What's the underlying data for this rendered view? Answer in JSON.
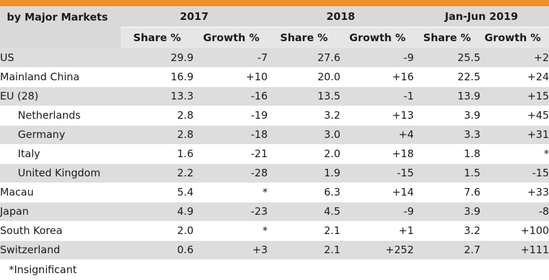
{
  "header": {
    "corner_label": "by Major Markets",
    "years": [
      "2017",
      "2018",
      "Jan-Jun 2019"
    ],
    "share_label": "Share %",
    "growth_label": "Growth %"
  },
  "rows": [
    {
      "market": "US",
      "indent": false,
      "values": [
        "29.9",
        "-7",
        "27.6",
        "-9",
        "25.5",
        "+2"
      ]
    },
    {
      "market": "Mainland China",
      "indent": false,
      "values": [
        "16.9",
        "+10",
        "20.0",
        "+16",
        "22.5",
        "+24"
      ]
    },
    {
      "market": "EU (28)",
      "indent": false,
      "values": [
        "13.3",
        "-16",
        "13.5",
        "-1",
        "13.9",
        "+15"
      ]
    },
    {
      "market": "Netherlands",
      "indent": true,
      "values": [
        "2.8",
        "-19",
        "3.2",
        "+13",
        "3.9",
        "+45"
      ]
    },
    {
      "market": "Germany",
      "indent": true,
      "values": [
        "2.8",
        "-18",
        "3.0",
        "+4",
        "3.3",
        "+31"
      ]
    },
    {
      "market": "Italy",
      "indent": true,
      "values": [
        "1.6",
        "-21",
        "2.0",
        "+18",
        "1.8",
        "*"
      ]
    },
    {
      "market": "United Kingdom",
      "indent": true,
      "values": [
        "2.2",
        "-28",
        "1.9",
        "-15",
        "1.5",
        "-15"
      ]
    },
    {
      "market": "Macau",
      "indent": false,
      "values": [
        "5.4",
        "*",
        "6.3",
        "+14",
        "7.6",
        "+33"
      ]
    },
    {
      "market": "Japan",
      "indent": false,
      "values": [
        "4.9",
        "-23",
        "4.5",
        "-9",
        "3.9",
        "-8"
      ]
    },
    {
      "market": "South Korea",
      "indent": false,
      "values": [
        "2.0",
        "*",
        "2.1",
        "+1",
        "3.2",
        "+100"
      ]
    },
    {
      "market": "Switzerland",
      "indent": false,
      "values": [
        "0.6",
        "+3",
        "2.1",
        "+252",
        "2.7",
        "+111"
      ]
    }
  ],
  "footnote": "*Insignificant",
  "colors": {
    "accent": "#f28e2b",
    "header_bg": "#d9d9d9",
    "row_alt": "#dddddd"
  }
}
